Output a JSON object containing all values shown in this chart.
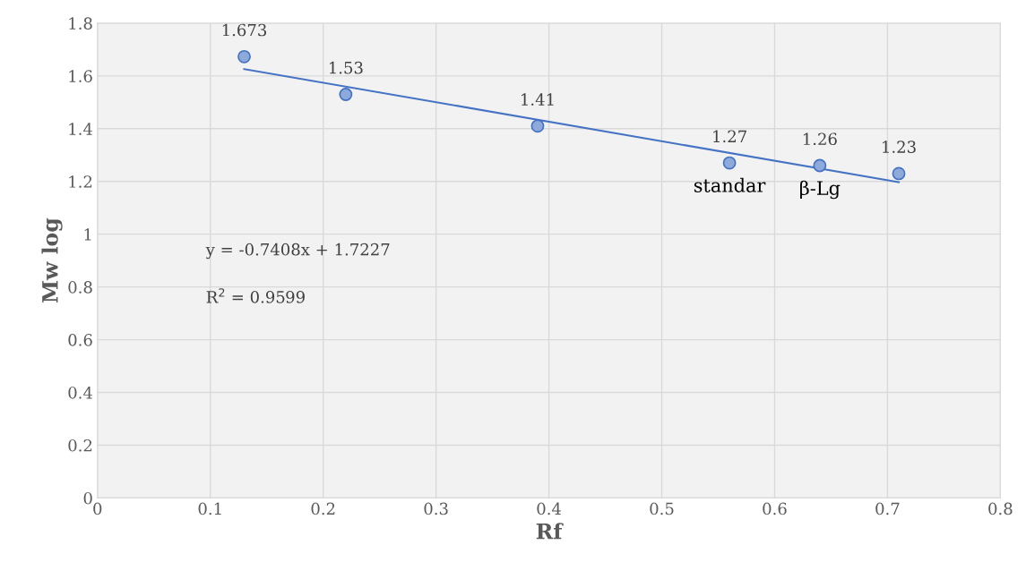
{
  "chart_data": {
    "type": "scatter",
    "xlabel": "Rf",
    "ylabel": "Mw log",
    "xlim": [
      0,
      0.8
    ],
    "xticks": [
      0,
      0.1,
      0.2,
      0.3,
      0.4,
      0.5,
      0.6,
      0.7,
      0.8
    ],
    "ylim": [
      0,
      1.8
    ],
    "yticks": [
      0,
      0.2,
      0.4,
      0.6,
      0.8,
      1,
      1.2,
      1.4,
      1.6,
      1.8
    ],
    "grid": true,
    "marker": "circle",
    "series": [
      {
        "color": "#8eaadb",
        "x": [
          0.13,
          0.22,
          0.39,
          0.56,
          0.64,
          0.71
        ],
        "values": [
          1.673,
          1.53,
          1.41,
          1.27,
          1.26,
          1.23
        ],
        "data_labels": true
      },
      {
        "type": "line",
        "color": "#4472c4",
        "x": [
          0.13,
          0.71
        ],
        "values": [
          1.626,
          1.197
        ],
        "marker": "none",
        "line_style": "solid"
      }
    ],
    "annotations": [
      {
        "text": "standar",
        "x": 0.56,
        "y": 1.27
      },
      {
        "text": "β-Lg",
        "x": 0.64,
        "y": 1.26
      },
      "y = -0.7408x + 1.7227",
      "R$^{2}$ = 0.9599"
    ]
  }
}
